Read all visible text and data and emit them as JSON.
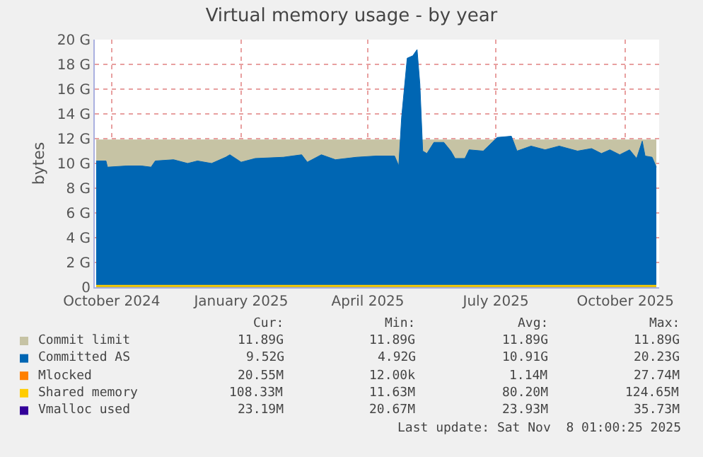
{
  "chart_data": {
    "type": "area",
    "title": "Virtual memory usage - by year",
    "ylabel": "bytes",
    "xlim": [
      "2024-10-03",
      "2025-11-08"
    ],
    "xticks": [
      {
        "value": "2024-10-15",
        "label": "October 2024"
      },
      {
        "value": "2025-01-15",
        "label": "January 2025"
      },
      {
        "value": "2025-04-15",
        "label": "April 2025"
      },
      {
        "value": "2025-07-15",
        "label": "July 2025"
      },
      {
        "value": "2025-10-15",
        "label": "October 2025"
      }
    ],
    "ylim": [
      0,
      20
    ],
    "yticks": [
      {
        "value": 0,
        "label": "0"
      },
      {
        "value": 2,
        "label": "2 G"
      },
      {
        "value": 4,
        "label": "4 G"
      },
      {
        "value": 6,
        "label": "6 G"
      },
      {
        "value": 8,
        "label": "8 G"
      },
      {
        "value": 10,
        "label": "10 G"
      },
      {
        "value": 12,
        "label": "12 G"
      },
      {
        "value": 14,
        "label": "14 G"
      },
      {
        "value": 16,
        "label": "16 G"
      },
      {
        "value": 18,
        "label": "18 G"
      },
      {
        "value": 20,
        "label": "20 G"
      }
    ],
    "grid": true,
    "legend": "bottom left",
    "series": [
      {
        "name": "Commit limit",
        "color": "#c6c3a4",
        "x": [
          "2024-10-04",
          "2025-11-06"
        ],
        "values": [
          11.9,
          11.9
        ]
      },
      {
        "name": "Committed AS",
        "color": "#0066b3",
        "x": [
          "2024-10-04",
          "2024-10-11",
          "2024-10-12",
          "2024-10-26",
          "2024-11-05",
          "2024-11-12",
          "2024-11-15",
          "2024-11-28",
          "2024-12-08",
          "2024-12-15",
          "2024-12-25",
          "2025-01-04",
          "2025-01-07",
          "2025-01-15",
          "2025-01-25",
          "2025-02-14",
          "2025-02-27",
          "2025-03-03",
          "2025-03-13",
          "2025-03-23",
          "2025-04-07",
          "2025-04-21",
          "2025-05-04",
          "2025-05-07",
          "2025-05-09",
          "2025-05-13",
          "2025-05-17",
          "2025-05-20",
          "2025-05-22",
          "2025-05-24",
          "2025-05-27",
          "2025-06-01",
          "2025-06-08",
          "2025-06-13",
          "2025-06-16",
          "2025-06-23",
          "2025-06-26",
          "2025-07-06",
          "2025-07-16",
          "2025-07-26",
          "2025-07-30",
          "2025-08-09",
          "2025-08-19",
          "2025-08-29",
          "2025-09-11",
          "2025-09-21",
          "2025-09-28",
          "2025-10-04",
          "2025-10-11",
          "2025-10-18",
          "2025-10-23",
          "2025-10-27",
          "2025-10-29",
          "2025-11-03",
          "2025-11-06"
        ],
        "values": [
          10.2,
          10.2,
          9.7,
          9.8,
          9.8,
          9.7,
          10.2,
          10.3,
          10.0,
          10.2,
          10.0,
          10.5,
          10.7,
          10.1,
          10.4,
          10.5,
          10.7,
          10.1,
          10.7,
          10.3,
          10.5,
          10.6,
          10.6,
          9.8,
          13.7,
          18.5,
          18.7,
          19.2,
          16.4,
          11.0,
          10.8,
          11.7,
          11.7,
          11.0,
          10.4,
          10.4,
          11.1,
          11.0,
          12.1,
          12.2,
          11.0,
          11.4,
          11.1,
          11.4,
          11.0,
          11.2,
          10.8,
          11.1,
          10.7,
          11.1,
          10.4,
          11.8,
          10.6,
          10.5,
          9.7
        ]
      },
      {
        "name": "Mlocked",
        "color": "#ff8000",
        "type": "line"
      },
      {
        "name": "Shared memory",
        "color": "#ffcc00",
        "type": "line",
        "x": [
          "2024-10-04",
          "2025-11-06"
        ],
        "values": [
          0.1,
          0.1
        ]
      },
      {
        "name": "Vmalloc used",
        "color": "#330099",
        "type": "line"
      }
    ],
    "annotations": [
      "Cur:",
      "Min:",
      "Avg:",
      "Max:",
      "11.89G",
      "11.89G",
      "11.89G",
      "11.89G",
      "9.52G",
      "4.92G",
      "10.91G",
      "20.23G",
      "20.55M",
      "12.00k",
      "1.14M",
      "27.74M",
      "108.33M",
      "11.63M",
      "80.20M",
      "124.65M",
      "23.19M",
      "20.67M",
      "23.93M",
      "35.73M",
      "Last update: Sat Nov  8 01:00:25 2025"
    ]
  }
}
